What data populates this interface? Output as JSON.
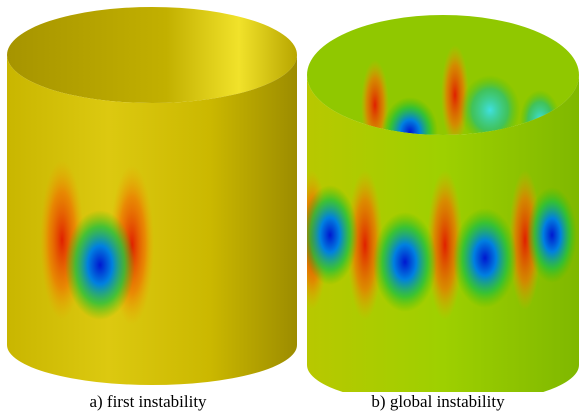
{
  "captions": [
    "a) first instability",
    "b) global instability"
  ]
}
